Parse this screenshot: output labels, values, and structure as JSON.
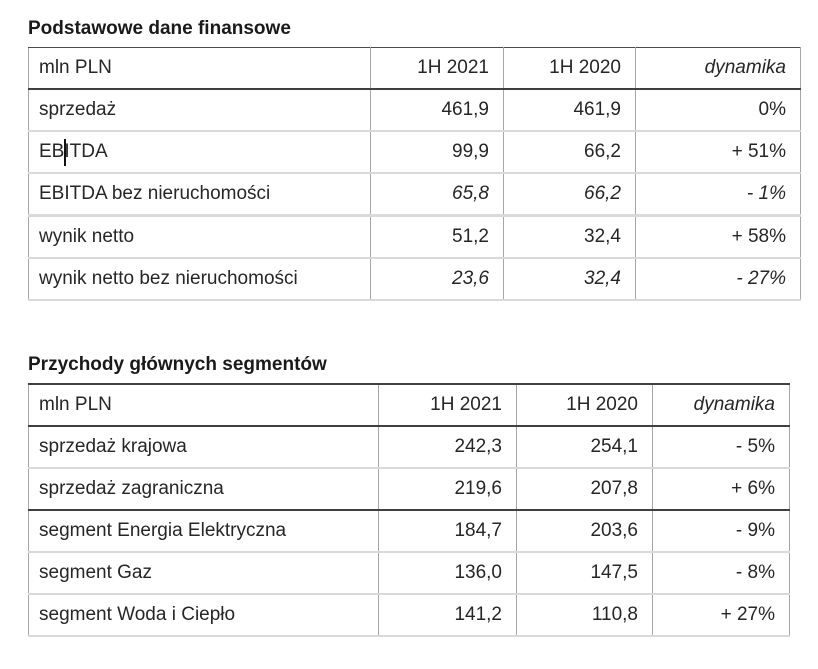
{
  "theme": {
    "background": "#ffffff",
    "text_color": "#262626",
    "title_color": "#1a1a1a",
    "border_dark": "#404040",
    "border_light": "#d9d9d9",
    "border_side": "#a6a6a6"
  },
  "tables": [
    {
      "title": "Podstawowe dane finansowe",
      "columns": [
        "mln PLN",
        "1H 2021",
        "1H 2020",
        "dynamika"
      ],
      "rows": [
        {
          "label": "sprzedaż",
          "h1_2021": "461,9",
          "h1_2020": "461,9",
          "dynamika": "0%",
          "italic_values": false,
          "text_cursor": false,
          "separator_below": "normal"
        },
        {
          "label": "EBITDA",
          "h1_2021": "99,9",
          "h1_2020": "66,2",
          "dynamika": "+ 51%",
          "italic_values": false,
          "text_cursor": true,
          "separator_below": "normal"
        },
        {
          "label": "EBITDA bez nieruchomości",
          "h1_2021": "65,8",
          "h1_2020": "66,2",
          "dynamika": "- 1%",
          "italic_values": true,
          "text_cursor": false,
          "separator_below": "light"
        },
        {
          "label": "wynik netto",
          "h1_2021": "51,2",
          "h1_2020": "32,4",
          "dynamika": "+ 58%",
          "italic_values": false,
          "text_cursor": false,
          "separator_below": "normal"
        },
        {
          "label": "wynik netto bez nieruchomości",
          "h1_2021": "23,6",
          "h1_2020": "32,4",
          "dynamika": "- 27%",
          "italic_values": true,
          "text_cursor": false,
          "separator_below": "normal"
        }
      ]
    },
    {
      "title": "Przychody głównych segmentów",
      "columns": [
        "mln PLN",
        "1H 2021",
        "1H 2020",
        "dynamika"
      ],
      "rows": [
        {
          "label": "sprzedaż krajowa",
          "h1_2021": "242,3",
          "h1_2020": "254,1",
          "dynamika": "- 5%",
          "italic_values": false,
          "text_cursor": false,
          "separator_below": "normal"
        },
        {
          "label": "sprzedaż zagraniczna",
          "h1_2021": "219,6",
          "h1_2020": "207,8",
          "dynamika": "+ 6%",
          "italic_values": false,
          "text_cursor": false,
          "separator_below": "dark"
        },
        {
          "label": "segment Energia Elektryczna",
          "h1_2021": "184,7",
          "h1_2020": "203,6",
          "dynamika": "- 9%",
          "italic_values": false,
          "text_cursor": false,
          "separator_below": "normal"
        },
        {
          "label": "segment Gaz",
          "h1_2021": "136,0",
          "h1_2020": "147,5",
          "dynamika": "- 8%",
          "italic_values": false,
          "text_cursor": false,
          "separator_below": "normal"
        },
        {
          "label": "segment Woda i Ciepło",
          "h1_2021": "141,2",
          "h1_2020": "110,8",
          "dynamika": "+ 27%",
          "italic_values": false,
          "text_cursor": false,
          "separator_below": "normal"
        }
      ]
    }
  ]
}
